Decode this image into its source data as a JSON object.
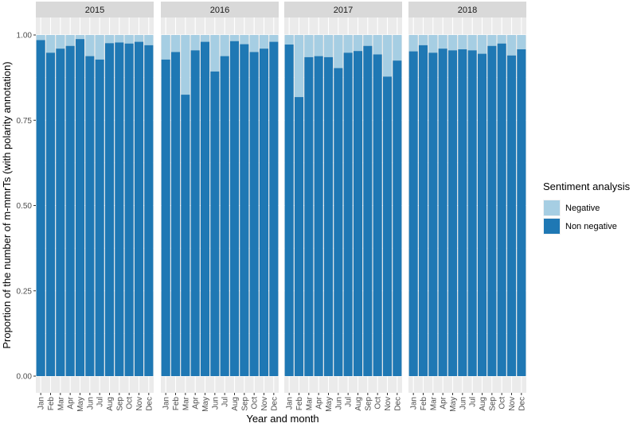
{
  "chart_data": {
    "type": "bar",
    "stacked": true,
    "xlabel": "Year and month",
    "ylabel": "Proportion of the number of m-mmrTs (with polarity annotation)",
    "ylim": [
      0,
      1.0
    ],
    "yticks": [
      "0.00",
      "0.25",
      "0.50",
      "0.75",
      "1.00"
    ],
    "ytick_values": [
      0,
      0.25,
      0.5,
      0.75,
      1.0
    ],
    "categories": [
      "Jan",
      "Feb",
      "Mar",
      "Apr",
      "May",
      "Jun",
      "Jul",
      "Aug",
      "Sep",
      "Oct",
      "Nov",
      "Dec"
    ],
    "legend": {
      "title": "Sentiment analysis",
      "placement": "right",
      "entries": [
        {
          "label": "Negative",
          "color": "#a6cee3"
        },
        {
          "label": "Non negative",
          "color": "#1f78b4"
        }
      ]
    },
    "grid": true,
    "panels": [
      {
        "label": "2015",
        "non_negative": [
          0.985,
          0.948,
          0.96,
          0.968,
          0.988,
          0.938,
          0.928,
          0.976,
          0.978,
          0.975,
          0.98,
          0.97
        ]
      },
      {
        "label": "2016",
        "non_negative": [
          0.928,
          0.95,
          0.825,
          0.955,
          0.98,
          0.893,
          0.938,
          0.982,
          0.973,
          0.95,
          0.96,
          0.98
        ]
      },
      {
        "label": "2017",
        "non_negative": [
          0.972,
          0.818,
          0.935,
          0.938,
          0.935,
          0.903,
          0.948,
          0.953,
          0.968,
          0.943,
          0.878,
          0.925
        ]
      },
      {
        "label": "2018",
        "non_negative": [
          0.952,
          0.97,
          0.948,
          0.96,
          0.955,
          0.958,
          0.955,
          0.945,
          0.968,
          0.975,
          0.94,
          0.958
        ]
      }
    ]
  }
}
